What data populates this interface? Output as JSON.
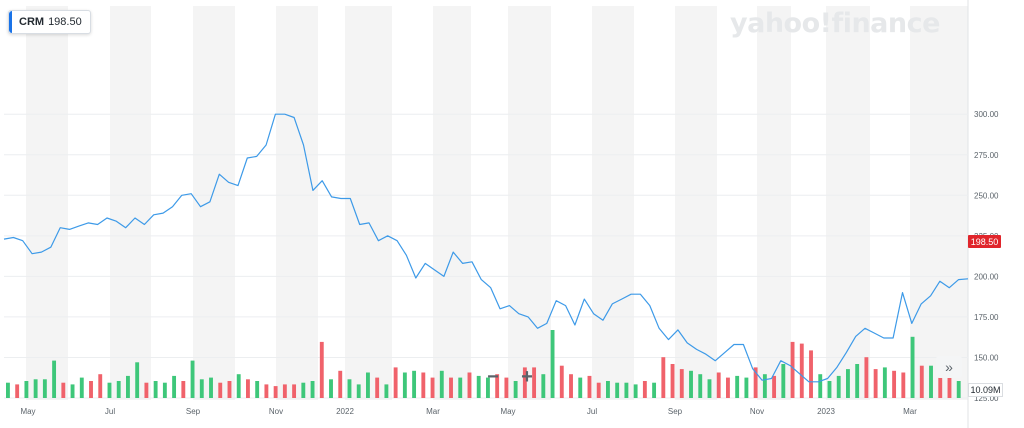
{
  "ticker": {
    "symbol": "CRM",
    "price": "198.50"
  },
  "brand": "yahoo!finance",
  "controls": {
    "zoom_out": "−",
    "zoom_in": "+",
    "next": "»"
  },
  "tags": {
    "last_price": "198.50",
    "volume": "10.09M"
  },
  "colors": {
    "line": "#3d9ae8",
    "volume_up": "#3ec77a",
    "volume_down": "#f0626b",
    "band": "#f4f4f4",
    "last_tag": "#e0252b"
  },
  "chart_data": {
    "type": "line",
    "title": "",
    "xlabel": "",
    "ylabel": "",
    "ylim": [
      125,
      310
    ],
    "y_ticks": [
      "300.00",
      "275.00",
      "250.00",
      "225.00",
      "200.00",
      "175.00",
      "150.00",
      "125.00"
    ],
    "x_ticks": [
      "May",
      "Jul",
      "Sep",
      "Nov",
      "2022",
      "Mar",
      "May",
      "Jul",
      "Sep",
      "Nov",
      "2023",
      "Mar"
    ],
    "grid": true,
    "series": [
      {
        "values": [
          223,
          224,
          222,
          214,
          215,
          218,
          230,
          229,
          231,
          233,
          232,
          236,
          234,
          230,
          236,
          232,
          238,
          239,
          243,
          250,
          251,
          243,
          246,
          263,
          258,
          256,
          273,
          274,
          281,
          300,
          300,
          298,
          281,
          253,
          259,
          249,
          248,
          248,
          232,
          233,
          222,
          225,
          222,
          213,
          199,
          208,
          204,
          200,
          215,
          208,
          209,
          198,
          193,
          180,
          182,
          177,
          175,
          168,
          171,
          185,
          182,
          170,
          186,
          177,
          173,
          183,
          186,
          189,
          189,
          182,
          168,
          161,
          167,
          159,
          155,
          152,
          148,
          153,
          158,
          158,
          143,
          136,
          137,
          148,
          145,
          140,
          135,
          135,
          137,
          144,
          153,
          163,
          168,
          165,
          162,
          162,
          190,
          171,
          183,
          188,
          197,
          193,
          198,
          198.5
        ]
      }
    ],
    "volume": {
      "label": "10.09M",
      "ylim": [
        0,
        50
      ],
      "values": [
        9,
        8,
        10,
        11,
        11,
        22,
        9,
        8,
        12,
        10,
        14,
        9,
        10,
        13,
        21,
        9,
        10,
        9,
        13,
        10,
        22,
        11,
        12,
        9,
        10,
        14,
        11,
        10,
        8,
        7,
        8,
        8,
        9,
        10,
        33,
        11,
        16,
        11,
        8,
        15,
        12,
        8,
        18,
        15,
        16,
        15,
        12,
        16,
        12,
        12,
        15,
        13,
        12,
        14,
        12,
        10,
        18,
        18,
        14,
        40,
        19,
        14,
        12,
        13,
        9,
        10,
        9,
        9,
        8,
        10,
        9,
        24,
        20,
        17,
        16,
        14,
        11,
        15,
        12,
        13,
        12,
        18,
        14,
        13,
        20,
        33,
        32,
        28,
        14,
        10,
        13,
        17,
        20,
        24,
        17,
        18,
        16,
        15,
        36,
        19,
        19,
        14,
        13,
        10
      ],
      "up": [
        1,
        0,
        1,
        1,
        1,
        1,
        0,
        1,
        1,
        0,
        0,
        1,
        1,
        1,
        1,
        0,
        1,
        1,
        1,
        0,
        1,
        1,
        1,
        0,
        0,
        1,
        0,
        1,
        0,
        0,
        0,
        0,
        1,
        1,
        0,
        1,
        0,
        1,
        1,
        1,
        0,
        1,
        0,
        1,
        1,
        0,
        0,
        1,
        0,
        1,
        0,
        1,
        1,
        0,
        0,
        1,
        0,
        0,
        1,
        1,
        0,
        0,
        1,
        0,
        0,
        1,
        1,
        1,
        1,
        0,
        1,
        0,
        0,
        0,
        1,
        1,
        1,
        0,
        0,
        1,
        1,
        0,
        1,
        0,
        1,
        0,
        0,
        0,
        1,
        1,
        1,
        1,
        1,
        0,
        0,
        1,
        0,
        0,
        1,
        0,
        1,
        0,
        0,
        1
      ]
    }
  }
}
